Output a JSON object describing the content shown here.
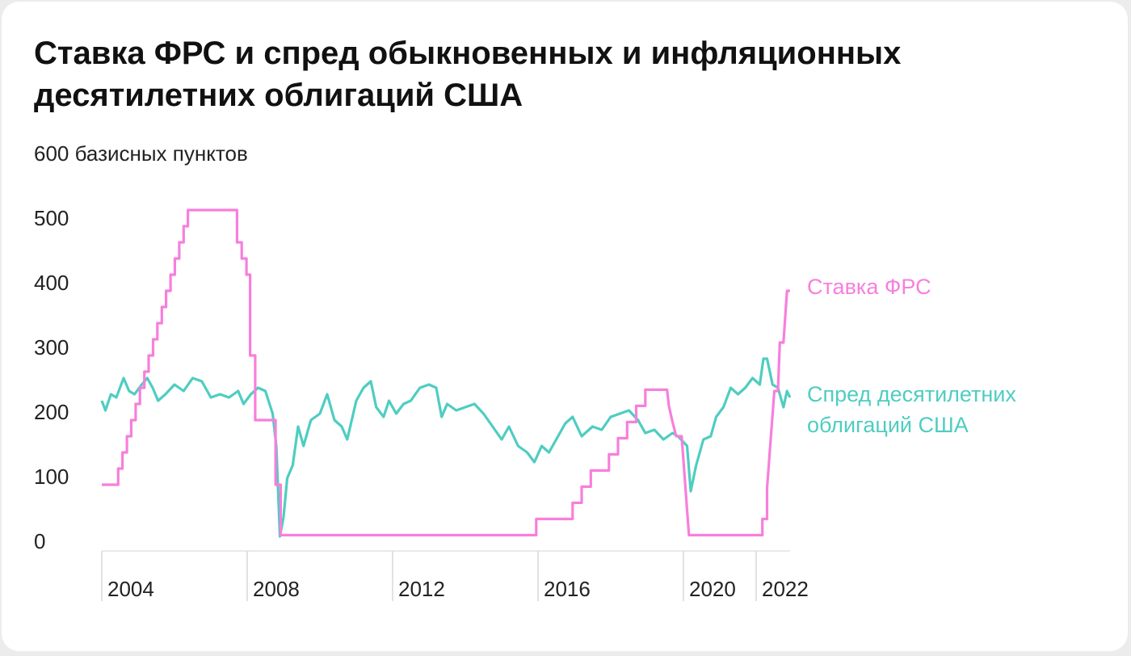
{
  "chart_data": {
    "type": "line",
    "title": "Ставка ФРС и спред обыкновенных и инфляционных десятилетних облигаций США",
    "xlim": [
      2004,
      2023
    ],
    "xticks": [
      2004,
      2008,
      2012,
      2016,
      2020,
      2022
    ],
    "ylim": [
      0,
      600
    ],
    "yticks": [
      0,
      100,
      200,
      300,
      400,
      500,
      {
        "value": 600,
        "label": "600 базисных пунктов"
      }
    ],
    "grid": false,
    "series": [
      {
        "name": "Спред десятилетних облигаций США",
        "color": "#4fcdc1",
        "x": [
          2004.0,
          2004.1,
          2004.25,
          2004.4,
          2004.6,
          2004.75,
          2004.9,
          2005.1,
          2005.25,
          2005.4,
          2005.55,
          2005.75,
          2006.0,
          2006.25,
          2006.5,
          2006.75,
          2007.0,
          2007.25,
          2007.5,
          2007.75,
          2007.9,
          2008.1,
          2008.3,
          2008.5,
          2008.7,
          2008.8,
          2008.9,
          2009.0,
          2009.1,
          2009.25,
          2009.4,
          2009.55,
          2009.75,
          2010.0,
          2010.2,
          2010.4,
          2010.6,
          2010.75,
          2011.0,
          2011.2,
          2011.4,
          2011.55,
          2011.75,
          2011.9,
          2012.1,
          2012.3,
          2012.5,
          2012.75,
          2013.0,
          2013.2,
          2013.35,
          2013.5,
          2013.75,
          2014.0,
          2014.25,
          2014.5,
          2014.75,
          2015.0,
          2015.2,
          2015.45,
          2015.7,
          2015.9,
          2016.1,
          2016.3,
          2016.5,
          2016.75,
          2016.95,
          2017.2,
          2017.5,
          2017.75,
          2018.0,
          2018.25,
          2018.5,
          2018.75,
          2018.95,
          2019.2,
          2019.45,
          2019.7,
          2019.85,
          2020.1,
          2020.2,
          2020.35,
          2020.55,
          2020.75,
          2020.9,
          2021.1,
          2021.3,
          2021.5,
          2021.7,
          2021.9,
          2022.1,
          2022.2,
          2022.3,
          2022.45,
          2022.6,
          2022.75,
          2022.85,
          2022.93
        ],
        "values": [
          220,
          205,
          230,
          225,
          255,
          235,
          230,
          245,
          255,
          240,
          220,
          230,
          245,
          235,
          255,
          250,
          225,
          230,
          225,
          235,
          215,
          230,
          240,
          235,
          200,
          150,
          10,
          40,
          100,
          120,
          180,
          150,
          190,
          200,
          230,
          190,
          180,
          160,
          220,
          240,
          250,
          210,
          195,
          220,
          200,
          215,
          220,
          240,
          245,
          240,
          195,
          215,
          205,
          210,
          215,
          200,
          180,
          160,
          180,
          150,
          140,
          125,
          150,
          140,
          160,
          185,
          195,
          165,
          180,
          175,
          195,
          200,
          205,
          190,
          170,
          175,
          160,
          170,
          165,
          150,
          80,
          120,
          160,
          165,
          195,
          210,
          240,
          230,
          240,
          255,
          245,
          285,
          285,
          245,
          240,
          210,
          235,
          225
        ]
      },
      {
        "name": "Ставка ФРС",
        "color": "#f77fdc",
        "x": [
          2004,
          2004.45,
          2004.45,
          2004.57,
          2004.57,
          2004.69,
          2004.69,
          2004.81,
          2004.81,
          2004.93,
          2004.93,
          2005.05,
          2005.05,
          2005.17,
          2005.17,
          2005.29,
          2005.29,
          2005.41,
          2005.41,
          2005.53,
          2005.53,
          2005.65,
          2005.65,
          2005.77,
          2005.77,
          2005.89,
          2005.89,
          2006.01,
          2006.01,
          2006.13,
          2006.13,
          2006.25,
          2006.25,
          2006.37,
          2006.37,
          2007.72,
          2007.72,
          2007.85,
          2007.85,
          2007.98,
          2007.98,
          2008.08,
          2008.08,
          2008.22,
          2008.22,
          2008.78,
          2008.78,
          2008.92,
          2008.92,
          2015.95,
          2015.95,
          2016.95,
          2016.95,
          2017.2,
          2017.2,
          2017.45,
          2017.45,
          2017.95,
          2017.95,
          2018.2,
          2018.2,
          2018.45,
          2018.45,
          2018.7,
          2018.7,
          2018.95,
          2018.95,
          2019.55,
          2019.6,
          2019.7,
          2019.8,
          2019.95,
          2020.15,
          2022.17,
          2022.17,
          2022.3,
          2022.3,
          2022.4,
          2022.5,
          2022.6,
          2022.65,
          2022.75,
          2022.85,
          2022.93
        ],
        "values": [
          90,
          90,
          115,
          115,
          140,
          140,
          165,
          165,
          190,
          190,
          215,
          215,
          240,
          240,
          265,
          265,
          290,
          290,
          315,
          315,
          340,
          340,
          365,
          365,
          390,
          390,
          415,
          415,
          440,
          440,
          465,
          465,
          490,
          490,
          515,
          515,
          465,
          465,
          440,
          440,
          415,
          415,
          290,
          290,
          190,
          190,
          90,
          90,
          12,
          12,
          37,
          37,
          62,
          62,
          87,
          87,
          112,
          112,
          137,
          137,
          162,
          162,
          187,
          187,
          212,
          212,
          237,
          237,
          212,
          187,
          165,
          165,
          12,
          12,
          37,
          37,
          85,
          160,
          235,
          235,
          310,
          310,
          390,
          390
        ]
      }
    ]
  }
}
